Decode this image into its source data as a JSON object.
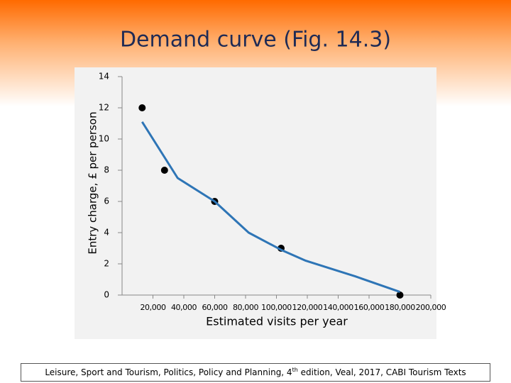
{
  "chart_data": {
    "type": "scatter",
    "title": "Demand curve (Fig. 14.3)",
    "x_label": "Estimated visits per year",
    "y_label": "Entry charge, £ per person",
    "xlim": [
      0,
      200000
    ],
    "ylim": [
      0,
      14
    ],
    "xticks": [
      {
        "value": 20000,
        "label": "20,000"
      },
      {
        "value": 40000,
        "label": "40,000"
      },
      {
        "value": 60000,
        "label": "60,000"
      },
      {
        "value": 80000,
        "label": "80,000"
      },
      {
        "value": 100000,
        "label": "100,000"
      },
      {
        "value": 120000,
        "label": "120,000"
      },
      {
        "value": 140000,
        "label": "140,000"
      },
      {
        "value": 160000,
        "label": "160,000"
      },
      {
        "value": 180000,
        "label": "180,000"
      },
      {
        "value": 200000,
        "label": "200,000"
      }
    ],
    "yticks": [
      0,
      2,
      4,
      6,
      8,
      10,
      12,
      14
    ],
    "grid": false,
    "series": [
      {
        "type": "scatter",
        "color": "#000000",
        "x": [
          13000,
          27500,
          60000,
          103000,
          180000
        ],
        "values": [
          12,
          8,
          6,
          3,
          0
        ]
      },
      {
        "type": "line",
        "color": "#2e75b6",
        "x": [
          13000,
          36000,
          60000,
          82000,
          103000,
          119000,
          151000,
          180000
        ],
        "values": [
          11.1,
          7.5,
          6,
          4,
          2.9,
          2.2,
          1.2,
          0.2
        ]
      }
    ]
  },
  "footer": [
    "Leisure, Sport and Tourism, Politics, Policy and Planning, 4",
    "th",
    " edition, Veal, 2017, CABI Tourism Texts"
  ]
}
